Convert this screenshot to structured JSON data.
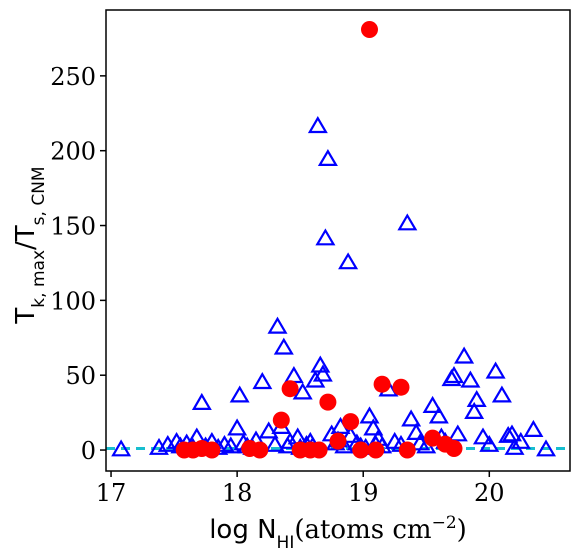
{
  "chart_data": {
    "type": "scatter",
    "title": "",
    "xlabel": "log N_HI(atoms cm^-2)",
    "ylabel": "T_k,max/T_s,CNM",
    "xlim": [
      16.96,
      20.64
    ],
    "ylim": [
      -14,
      294
    ],
    "x_ticks": [
      {
        "value": 17,
        "label": "17"
      },
      {
        "value": 18,
        "label": "18"
      },
      {
        "value": 19,
        "label": "19"
      },
      {
        "value": 20,
        "label": "20"
      }
    ],
    "y_ticks": [
      {
        "value": 0,
        "label": "0"
      },
      {
        "value": 50,
        "label": "50"
      },
      {
        "value": 100,
        "label": "100"
      },
      {
        "value": 150,
        "label": "150"
      },
      {
        "value": 200,
        "label": "200"
      },
      {
        "value": 250,
        "label": "250"
      }
    ],
    "reference_line": {
      "y": 1,
      "color": "#17becf",
      "style": "dashed"
    },
    "grid": false,
    "legend": "none",
    "series": [
      {
        "marker": "open-triangle",
        "color": "#0000ff",
        "points": [
          [
            17.08,
            0
          ],
          [
            17.38,
            1
          ],
          [
            17.45,
            3
          ],
          [
            17.52,
            5
          ],
          [
            17.55,
            2
          ],
          [
            17.6,
            4
          ],
          [
            17.65,
            1
          ],
          [
            17.68,
            8
          ],
          [
            17.72,
            31
          ],
          [
            17.75,
            2
          ],
          [
            17.8,
            5
          ],
          [
            17.85,
            1
          ],
          [
            17.9,
            3
          ],
          [
            17.95,
            2
          ],
          [
            18.0,
            14
          ],
          [
            18.02,
            36
          ],
          [
            18.05,
            4
          ],
          [
            18.08,
            2
          ],
          [
            18.12,
            1
          ],
          [
            18.15,
            6
          ],
          [
            18.2,
            45
          ],
          [
            18.25,
            12
          ],
          [
            18.3,
            3
          ],
          [
            18.32,
            82
          ],
          [
            18.35,
            15
          ],
          [
            18.37,
            68
          ],
          [
            18.4,
            2
          ],
          [
            18.42,
            5
          ],
          [
            18.45,
            49
          ],
          [
            18.48,
            8
          ],
          [
            18.5,
            1
          ],
          [
            18.52,
            38
          ],
          [
            18.55,
            3
          ],
          [
            18.58,
            5
          ],
          [
            18.6,
            2
          ],
          [
            18.62,
            46
          ],
          [
            18.64,
            216
          ],
          [
            18.66,
            56
          ],
          [
            18.68,
            50
          ],
          [
            18.7,
            141
          ],
          [
            18.72,
            194
          ],
          [
            18.75,
            10
          ],
          [
            18.78,
            4
          ],
          [
            18.8,
            6
          ],
          [
            18.82,
            15
          ],
          [
            18.85,
            2
          ],
          [
            18.88,
            125
          ],
          [
            18.9,
            9
          ],
          [
            18.95,
            4
          ],
          [
            18.98,
            2
          ],
          [
            19.02,
            1
          ],
          [
            19.05,
            22
          ],
          [
            19.08,
            14
          ],
          [
            19.1,
            3
          ],
          [
            19.12,
            7
          ],
          [
            19.15,
            2
          ],
          [
            19.2,
            40
          ],
          [
            19.25,
            5
          ],
          [
            19.3,
            3
          ],
          [
            19.35,
            151
          ],
          [
            19.38,
            20
          ],
          [
            19.42,
            11
          ],
          [
            19.45,
            4
          ],
          [
            19.5,
            2
          ],
          [
            19.55,
            29
          ],
          [
            19.6,
            22
          ],
          [
            19.62,
            8
          ],
          [
            19.65,
            5
          ],
          [
            19.7,
            47
          ],
          [
            19.72,
            49
          ],
          [
            19.75,
            10
          ],
          [
            19.8,
            62
          ],
          [
            19.85,
            46
          ],
          [
            19.88,
            25
          ],
          [
            19.9,
            33
          ],
          [
            19.95,
            8
          ],
          [
            20.0,
            3
          ],
          [
            20.05,
            52
          ],
          [
            20.1,
            36
          ],
          [
            20.15,
            9
          ],
          [
            20.18,
            10
          ],
          [
            20.2,
            1
          ],
          [
            20.25,
            5
          ],
          [
            20.35,
            13
          ],
          [
            20.45,
            0
          ]
        ]
      },
      {
        "marker": "filled-circle",
        "color": "#ff0000",
        "points": [
          [
            17.58,
            0
          ],
          [
            17.65,
            0
          ],
          [
            17.72,
            1
          ],
          [
            17.8,
            0
          ],
          [
            18.1,
            1
          ],
          [
            18.18,
            0
          ],
          [
            18.35,
            20
          ],
          [
            18.42,
            41
          ],
          [
            18.5,
            0
          ],
          [
            18.58,
            0
          ],
          [
            18.65,
            0
          ],
          [
            18.72,
            32
          ],
          [
            18.8,
            6
          ],
          [
            18.9,
            19
          ],
          [
            18.98,
            0
          ],
          [
            19.05,
            281
          ],
          [
            19.1,
            0
          ],
          [
            19.15,
            44
          ],
          [
            19.3,
            42
          ],
          [
            19.35,
            0
          ],
          [
            19.55,
            8
          ],
          [
            19.65,
            4
          ],
          [
            19.72,
            1
          ]
        ]
      }
    ]
  }
}
